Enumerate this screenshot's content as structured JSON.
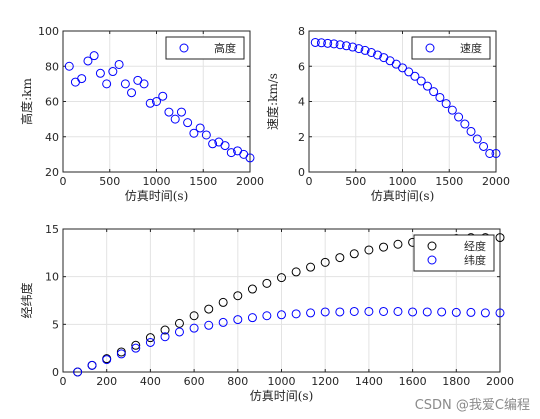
{
  "watermark": "CSDN @我爱C编程",
  "chart_data": [
    {
      "type": "scatter",
      "xlabel": "仿真时间(s)",
      "ylabel": "高度:km",
      "xlim": [
        0,
        2000
      ],
      "ylim": [
        20,
        100
      ],
      "xticks": [
        0,
        500,
        1000,
        1500,
        2000
      ],
      "yticks": [
        20,
        40,
        60,
        80,
        100
      ],
      "grid": true,
      "legend": "top-right",
      "series": [
        {
          "name": "高度",
          "color": "#0000ff",
          "marker": "circle-open",
          "x": [
            67,
            133,
            200,
            267,
            333,
            400,
            467,
            533,
            600,
            667,
            733,
            800,
            867,
            933,
            1000,
            1067,
            1133,
            1200,
            1267,
            1333,
            1400,
            1467,
            1533,
            1600,
            1667,
            1733,
            1800,
            1867,
            1933,
            2000
          ],
          "y": [
            80,
            71,
            73,
            83,
            86,
            76,
            70,
            77,
            81,
            70,
            65,
            72,
            70,
            59,
            60,
            63,
            54,
            50,
            54,
            48,
            42,
            45,
            41,
            36,
            37,
            35,
            31,
            32,
            30,
            28
          ]
        }
      ]
    },
    {
      "type": "scatter",
      "xlabel": "仿真时间(s)",
      "ylabel": "速度:km/s",
      "xlim": [
        0,
        2000
      ],
      "ylim": [
        0,
        8
      ],
      "xticks": [
        0,
        500,
        1000,
        1500,
        2000
      ],
      "yticks": [
        0,
        2,
        4,
        6,
        8
      ],
      "grid": true,
      "legend": "top-right",
      "series": [
        {
          "name": "速度",
          "color": "#0000ff",
          "marker": "circle-open",
          "x": [
            67,
            133,
            200,
            267,
            333,
            400,
            467,
            533,
            600,
            667,
            733,
            800,
            867,
            933,
            1000,
            1067,
            1133,
            1200,
            1267,
            1333,
            1400,
            1467,
            1533,
            1600,
            1667,
            1733,
            1800,
            1867,
            1933,
            2000
          ],
          "y": [
            7.35,
            7.33,
            7.3,
            7.27,
            7.22,
            7.16,
            7.09,
            7.0,
            6.9,
            6.78,
            6.64,
            6.49,
            6.31,
            6.12,
            5.91,
            5.68,
            5.43,
            5.16,
            4.87,
            4.56,
            4.23,
            3.88,
            3.51,
            3.12,
            2.72,
            2.3,
            1.87,
            1.45,
            1.05,
            1.05
          ]
        }
      ]
    },
    {
      "type": "scatter",
      "xlabel": "仿真时间(s)",
      "ylabel": "经纬度",
      "xlim": [
        0,
        2000
      ],
      "ylim": [
        0,
        15
      ],
      "xticks": [
        0,
        200,
        400,
        600,
        800,
        1000,
        1200,
        1400,
        1600,
        1800,
        2000
      ],
      "yticks": [
        0,
        5,
        10,
        15
      ],
      "grid": true,
      "legend": "top-right",
      "series": [
        {
          "name": "经度",
          "color": "#000000",
          "marker": "circle-open",
          "x": [
            67,
            133,
            200,
            267,
            333,
            400,
            467,
            533,
            600,
            667,
            733,
            800,
            867,
            933,
            1000,
            1067,
            1133,
            1200,
            1267,
            1333,
            1400,
            1467,
            1533,
            1600,
            1667,
            1733,
            1800,
            1867,
            1933,
            2000
          ],
          "y": [
            0,
            0.7,
            1.4,
            2.1,
            2.8,
            3.6,
            4.4,
            5.1,
            5.9,
            6.6,
            7.3,
            8.0,
            8.7,
            9.3,
            9.9,
            10.5,
            11.0,
            11.5,
            12.0,
            12.4,
            12.8,
            13.1,
            13.4,
            13.6,
            13.8,
            13.9,
            14.0,
            14.1,
            14.1,
            14.1
          ]
        },
        {
          "name": "纬度",
          "color": "#0000ff",
          "marker": "circle-open",
          "x": [
            67,
            133,
            200,
            267,
            333,
            400,
            467,
            533,
            600,
            667,
            733,
            800,
            867,
            933,
            1000,
            1067,
            1133,
            1200,
            1267,
            1333,
            1400,
            1467,
            1533,
            1600,
            1667,
            1733,
            1800,
            1867,
            1933,
            2000
          ],
          "y": [
            0,
            0.7,
            1.3,
            1.9,
            2.5,
            3.1,
            3.7,
            4.2,
            4.6,
            4.9,
            5.2,
            5.5,
            5.7,
            5.9,
            6.0,
            6.1,
            6.2,
            6.3,
            6.3,
            6.35,
            6.35,
            6.35,
            6.35,
            6.3,
            6.3,
            6.3,
            6.25,
            6.25,
            6.2,
            6.2
          ]
        }
      ]
    }
  ]
}
